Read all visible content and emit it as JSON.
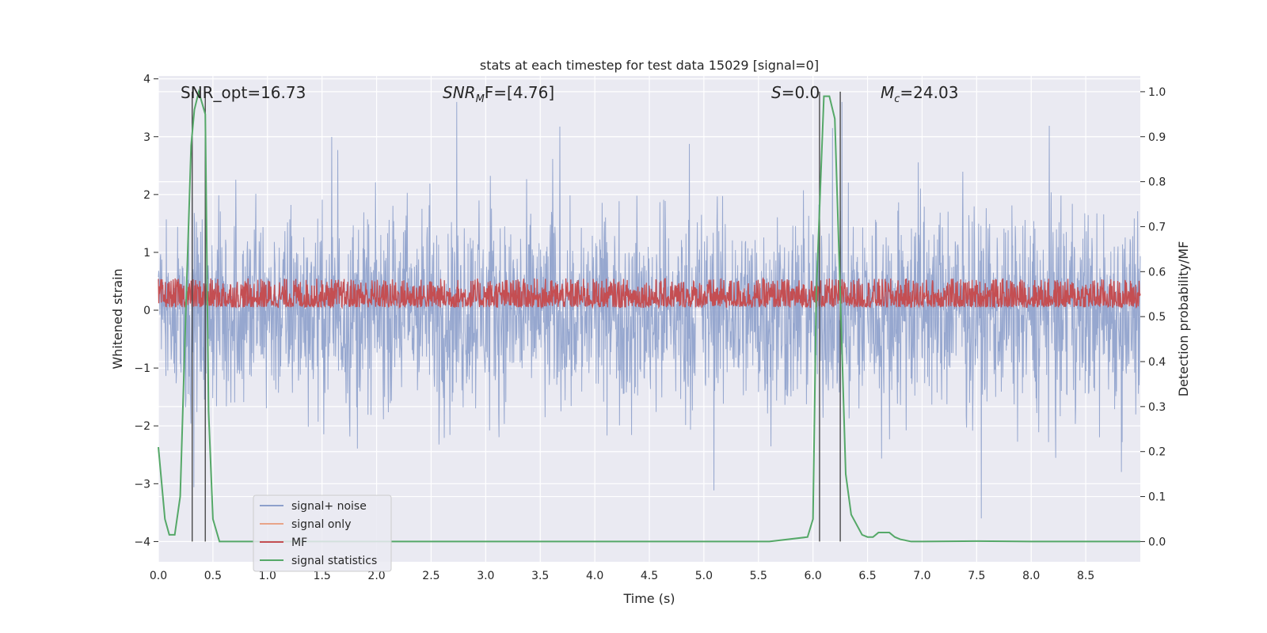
{
  "chart_data": {
    "type": "line",
    "title": "stats at each timestep for test data 15029 [signal=0]",
    "xlabel": "Time (s)",
    "ylabel": "Whitened strain",
    "y2label": "Detection probability/MF",
    "xlim": [
      0.0,
      9.0
    ],
    "ylim": [
      -4.35,
      4.05
    ],
    "y2lim": [
      -0.045,
      1.035
    ],
    "xticks": [
      "0.0",
      "0.5",
      "1.0",
      "1.5",
      "2.0",
      "2.5",
      "3.0",
      "3.5",
      "4.0",
      "4.5",
      "5.0",
      "5.5",
      "6.0",
      "6.5",
      "7.0",
      "7.5",
      "8.0",
      "8.5"
    ],
    "yticks": [
      "4",
      "3",
      "2",
      "1",
      "0",
      "−1",
      "−2",
      "−3",
      "−4"
    ],
    "y2ticks": [
      "1.0",
      "0.9",
      "0.8",
      "0.7",
      "0.6",
      "0.5",
      "0.4",
      "0.3",
      "0.2",
      "0.1",
      "0.0"
    ],
    "grid": true,
    "legend_position": "lower-left",
    "annotations": {
      "snr_opt": "SNR_opt=16.73",
      "snr_mf_main": "SNR",
      "snr_mf_sub": "M",
      "snr_mf_rest": "F=[4.76]",
      "s_main": "S",
      "s_rest": "=0.0",
      "mc_main": "M",
      "mc_sub": "c",
      "mc_rest": "=24.03"
    },
    "vlines_x": [
      0.31,
      0.43,
      6.06,
      6.25
    ],
    "series": [
      {
        "name": "signal+ noise",
        "color": "#8da0cb",
        "noise_description_values": {
          "x_start": 0.0,
          "x_end": 9.0,
          "abs_max": 3.6,
          "typical_peak": 2.2
        }
      },
      {
        "name": "signal only",
        "color": "#e8a488",
        "values": []
      },
      {
        "name": "MF",
        "color": "#c44e52",
        "band_values": {
          "low": 0.05,
          "high": 0.55
        }
      },
      {
        "name": "signal statistics",
        "color": "#55a868",
        "x": [
          0.0,
          0.06,
          0.1,
          0.15,
          0.2,
          0.25,
          0.3,
          0.33,
          0.37,
          0.43,
          0.46,
          0.5,
          0.56,
          0.7,
          1.0,
          2.0,
          3.0,
          4.0,
          5.0,
          5.6,
          5.95,
          6.0,
          6.03,
          6.1,
          6.15,
          6.2,
          6.25,
          6.3,
          6.35,
          6.45,
          6.5,
          6.55,
          6.6,
          6.7,
          6.75,
          6.8,
          6.9,
          7.0,
          7.5,
          8.0,
          8.5,
          9.0
        ],
        "values": [
          0.21,
          0.05,
          0.015,
          0.015,
          0.1,
          0.5,
          0.88,
          0.96,
          1.0,
          0.95,
          0.29,
          0.05,
          0.0,
          0.0,
          0.0,
          0.0,
          0.0,
          0.0,
          0.0,
          0.0,
          0.01,
          0.05,
          0.55,
          0.99,
          0.99,
          0.94,
          0.55,
          0.15,
          0.06,
          0.015,
          0.01,
          0.01,
          0.02,
          0.02,
          0.01,
          0.005,
          0.0,
          0.0,
          0.001,
          0.0,
          0.0,
          0.0
        ]
      }
    ]
  }
}
